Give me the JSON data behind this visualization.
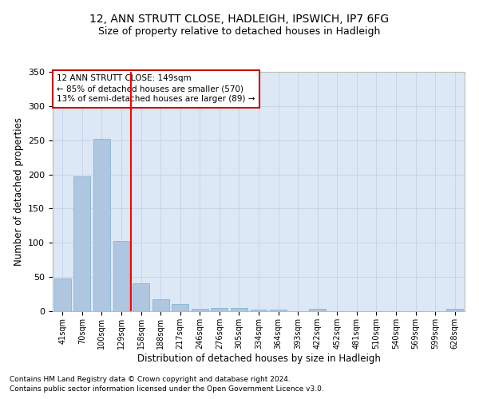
{
  "title1": "12, ANN STRUTT CLOSE, HADLEIGH, IPSWICH, IP7 6FG",
  "title2": "Size of property relative to detached houses in Hadleigh",
  "xlabel": "Distribution of detached houses by size in Hadleigh",
  "ylabel": "Number of detached properties",
  "footnote1": "Contains HM Land Registry data © Crown copyright and database right 2024.",
  "footnote2": "Contains public sector information licensed under the Open Government Licence v3.0.",
  "categories": [
    "41sqm",
    "70sqm",
    "100sqm",
    "129sqm",
    "158sqm",
    "188sqm",
    "217sqm",
    "246sqm",
    "276sqm",
    "305sqm",
    "334sqm",
    "364sqm",
    "393sqm",
    "422sqm",
    "452sqm",
    "481sqm",
    "510sqm",
    "540sqm",
    "569sqm",
    "599sqm",
    "628sqm"
  ],
  "values": [
    48,
    197,
    252,
    103,
    41,
    17,
    10,
    4,
    5,
    5,
    2,
    2,
    0,
    3,
    0,
    0,
    0,
    0,
    0,
    0,
    3
  ],
  "bar_color": "#aec6df",
  "bar_edgecolor": "#7aafd4",
  "red_line_index": 4,
  "annotation_text": "12 ANN STRUTT CLOSE: 149sqm\n← 85% of detached houses are smaller (570)\n13% of semi-detached houses are larger (89) →",
  "annotation_box_color": "#ffffff",
  "annotation_box_edgecolor": "#cc0000",
  "ylim": [
    0,
    350
  ],
  "grid_color": "#c8d4e8",
  "background_color": "#dce8f5",
  "title1_fontsize": 10,
  "title2_fontsize": 9,
  "xlabel_fontsize": 8.5,
  "ylabel_fontsize": 8.5,
  "tick_fontsize": 7,
  "annot_fontsize": 7.5,
  "footnote_fontsize": 6.5
}
